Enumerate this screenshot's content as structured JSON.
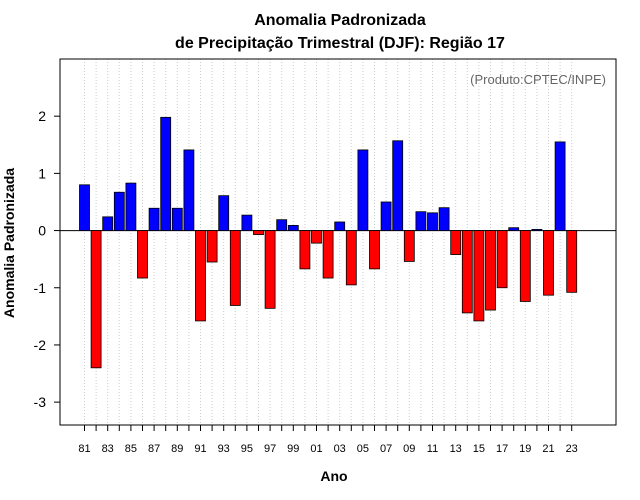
{
  "chart_data": {
    "type": "bar",
    "title_line1": "Anomalia Padronizada",
    "title_line2": "de Precipitação Trimestral (DJF): Região 17",
    "xlabel": "Ano",
    "ylabel": "Anomalia Padronizada",
    "credit": "(Produto:CPTEC/INPE)",
    "ylim": [
      -3.4,
      3.0
    ],
    "yticks": [
      -3,
      -2,
      -1,
      0,
      1,
      2
    ],
    "categories": [
      "81",
      "82",
      "83",
      "84",
      "85",
      "86",
      "87",
      "88",
      "89",
      "90",
      "91",
      "92",
      "93",
      "94",
      "95",
      "96",
      "97",
      "98",
      "99",
      "00",
      "01",
      "02",
      "03",
      "04",
      "05",
      "06",
      "07",
      "08",
      "09",
      "10",
      "11",
      "12",
      "13",
      "14",
      "15",
      "16",
      "17",
      "18",
      "19",
      "20",
      "21",
      "22",
      "23"
    ],
    "xtick_labels": [
      "81",
      "83",
      "85",
      "87",
      "89",
      "91",
      "93",
      "95",
      "97",
      "99",
      "01",
      "03",
      "05",
      "07",
      "09",
      "11",
      "13",
      "15",
      "17",
      "19",
      "21",
      "23"
    ],
    "values": [
      0.8,
      -2.4,
      0.24,
      0.67,
      0.83,
      -0.83,
      0.39,
      1.98,
      0.39,
      1.41,
      -1.58,
      -0.55,
      0.61,
      -1.31,
      0.27,
      -0.07,
      -1.36,
      0.19,
      0.09,
      -0.67,
      -0.22,
      -0.83,
      0.15,
      -0.95,
      1.41,
      -0.67,
      0.5,
      1.57,
      -0.54,
      0.33,
      0.31,
      0.4,
      -0.42,
      -1.44,
      -1.58,
      -1.39,
      -1.0,
      0.05,
      -1.24,
      0.02,
      -1.13,
      1.55,
      -1.08
    ],
    "colors": {
      "positive": "#0000FF",
      "negative": "#FF0000",
      "grid": "#CCCCCC"
    }
  }
}
